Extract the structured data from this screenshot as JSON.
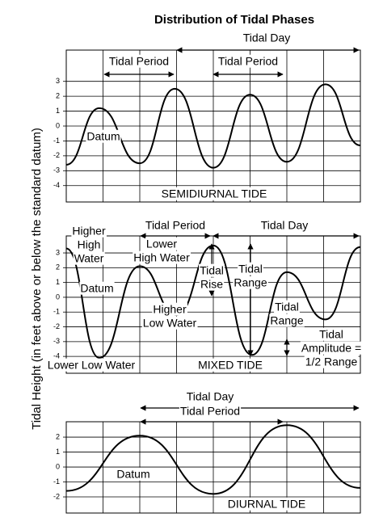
{
  "title": "Distribution of Tidal Phases",
  "y_label": "Tidal Height (in feet above or below the standard datum)",
  "chart_data": [
    {
      "type": "line",
      "color": "#000000",
      "grid": true,
      "xlim": [
        0,
        8
      ],
      "xticks": [
        0,
        1,
        2,
        3,
        4,
        5,
        6,
        7,
        8
      ],
      "ylim": [
        -5.1,
        5.1
      ],
      "yticks": [
        -4,
        -3,
        -2,
        -1,
        0,
        1,
        2,
        3
      ],
      "x": [
        0,
        0.9,
        2.0,
        2.95,
        4.0,
        5.0,
        6.0,
        7.05,
        8
      ],
      "values": [
        -2.6,
        1.2,
        -2.5,
        2.5,
        -2.8,
        2.1,
        -2.4,
        2.8,
        -1.3
      ],
      "annotations": [
        [
          "Tidal Day"
        ],
        [
          "Tidal Period"
        ],
        [
          "Tidal Period"
        ],
        [
          "Datum"
        ],
        [
          "SEMIDIURNAL TIDE"
        ]
      ]
    },
    {
      "type": "line",
      "color": "#000000",
      "grid": true,
      "xlim": [
        0,
        8
      ],
      "xticks": [
        0,
        1,
        2,
        3,
        4,
        5,
        6,
        7,
        8
      ],
      "ylim": [
        -5.14,
        4.15
      ],
      "yticks": [
        -4,
        -3,
        -2,
        -1,
        0,
        1,
        2,
        3
      ],
      "x": [
        0,
        0.9,
        2.0,
        3.0,
        4.0,
        5.05,
        6.0,
        7.05,
        8
      ],
      "values": [
        3.3,
        -4.1,
        2.1,
        -1.2,
        3.5,
        -3.9,
        1.7,
        -1.5,
        3.4
      ],
      "annotations": [
        [
          "Tidal Period"
        ],
        [
          "Tidal Day"
        ],
        [
          "Higher",
          "High",
          "Water"
        ],
        [
          "Lower",
          "High Water"
        ],
        [
          "Datum"
        ],
        [
          "Higher",
          "Low Water"
        ],
        [
          "Lower Low Water"
        ],
        [
          "MIXED TIDE"
        ],
        [
          "Tidal",
          "Rise"
        ],
        [
          "Tidal",
          "Range"
        ],
        [
          "Tidal",
          "Range"
        ],
        [
          "Tidal",
          "Amplitude =",
          "1/2 Range"
        ]
      ]
    },
    {
      "type": "line",
      "color": "#000000",
      "grid": true,
      "xlim": [
        0,
        8
      ],
      "xticks": [
        0,
        1,
        2,
        3,
        4,
        5,
        6,
        7,
        8
      ],
      "ylim": [
        -3.08,
        3.03
      ],
      "yticks": [
        -2,
        -1,
        0,
        1,
        2
      ],
      "x": [
        0,
        2.0,
        4.0,
        6.0,
        8
      ],
      "values": [
        -1.6,
        2.1,
        -1.8,
        2.8,
        -1.4
      ],
      "annotations": [
        [
          "Tidal Day"
        ],
        [
          "Tidal Period"
        ],
        [
          "Datum"
        ],
        [
          "DIURNAL TIDE"
        ]
      ]
    }
  ]
}
